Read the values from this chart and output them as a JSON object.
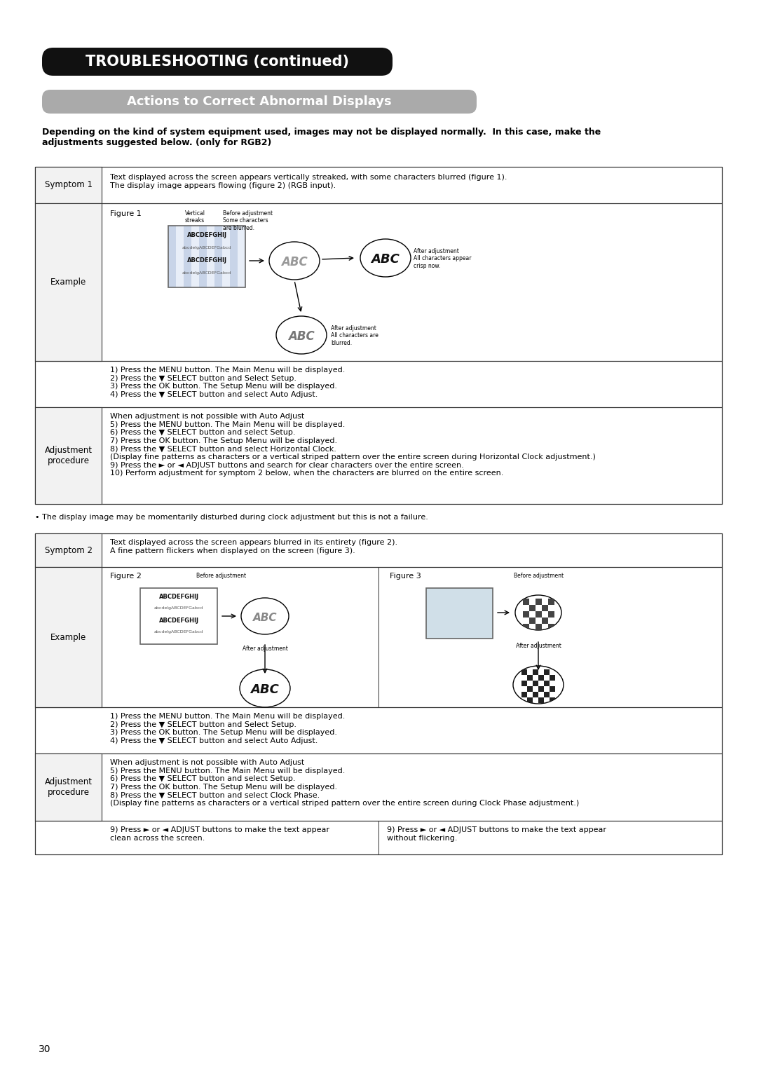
{
  "page_number": "30",
  "background_color": "#ffffff",
  "title_box": {
    "text": "TROUBLESHOOTING (continued)",
    "bg_color": "#111111",
    "text_color": "#ffffff",
    "font_size": 15,
    "bold": true
  },
  "subtitle_box": {
    "text": "Actions to Correct Abnormal Displays",
    "bg_color": "#aaaaaa",
    "text_color": "#ffffff",
    "font_size": 13,
    "bold": true
  },
  "intro_text": "Depending on the kind of system equipment used, images may not be displayed normally.  In this case, make the\nadjustments suggested below. (only for RGB2)",
  "bullet_note1": "• The display image may be momentarily disturbed during clock adjustment but this is not a failure.",
  "table1": {
    "symptom_label": "Symptom 1",
    "symptom_text": "Text displayed across the screen appears vertically streaked, with some characters blurred (figure 1).\nThe display image appears flowing (figure 2) (RGB input).",
    "example_label": "Example",
    "adjustment_label": "Adjustment\nprocedure",
    "adj_part1": "1) Press the MENU button. The Main Menu will be displayed.\n2) Press the ▼ SELECT button and Select Setup.\n3) Press the OK button. The Setup Menu will be displayed.\n4) Press the ▼ SELECT button and select Auto Adjust.",
    "adj_part2": "When adjustment is not possible with Auto Adjust\n5) Press the MENU button. The Main Menu will be displayed.\n6) Press the ▼ SELECT button and select Setup.\n7) Press the OK button. The Setup Menu will be displayed.\n8) Press the ▼ SELECT button and select Horizontal Clock.\n(Display fine patterns as characters or a vertical striped pattern over the entire screen during Horizontal Clock adjustment.)\n9) Press the ► or ◄ ADJUST buttons and search for clear characters over the entire screen.\n10) Perform adjustment for symptom 2 below, when the characters are blurred on the entire screen."
  },
  "table2": {
    "symptom_label": "Symptom 2",
    "symptom_text": "Text displayed across the screen appears blurred in its entirety (figure 2).\nA fine pattern flickers when displayed on the screen (figure 3).",
    "example_label": "Example",
    "adjustment_label": "Adjustment\nprocedure",
    "adj_part1": "1) Press the MENU button. The Main Menu will be displayed.\n2) Press the ▼ SELECT button and Select Setup.\n3) Press the OK button. The Setup Menu will be displayed.\n4) Press the ▼ SELECT button and select Auto Adjust.",
    "adj_part2": "When adjustment is not possible with Auto Adjust\n5) Press the MENU button. The Main Menu will be displayed.\n6) Press the ▼ SELECT button and select Setup.\n7) Press the OK button. The Setup Menu will be displayed.\n8) Press the ▼ SELECT button and select Clock Phase.\n(Display fine patterns as characters or a vertical striped pattern over the entire screen during Clock Phase adjustment.)",
    "adj_part3_left": "9) Press ► or ◄ ADJUST buttons to make the text appear\nclean across the screen.",
    "adj_part3_right": "9) Press ► or ◄ ADJUST buttons to make the text appear\nwithout flickering."
  }
}
